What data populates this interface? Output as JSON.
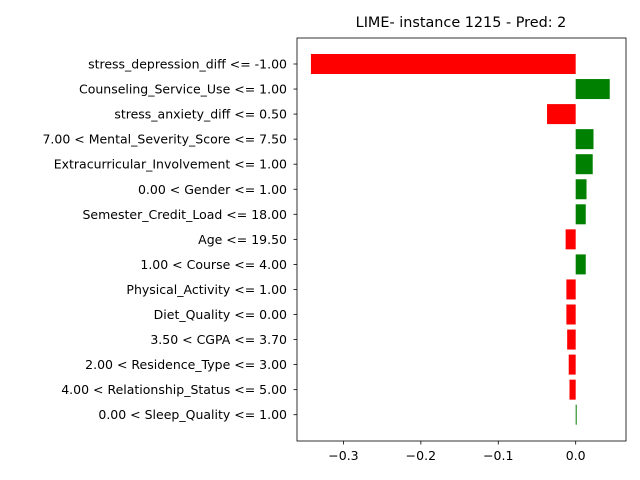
{
  "chart_data": {
    "type": "bar",
    "orientation": "horizontal",
    "title": "LIME- instance 1215 - Pred: 2",
    "xlabel": "",
    "ylabel": "",
    "xlim": [
      -0.36,
      0.065
    ],
    "xticks": [
      {
        "value": -0.3,
        "label": "−0.3"
      },
      {
        "value": -0.2,
        "label": "−0.2"
      },
      {
        "value": -0.1,
        "label": "−0.1"
      },
      {
        "value": 0.0,
        "label": "0.0"
      }
    ],
    "grid": false,
    "positive_color": "#008000",
    "negative_color": "#ff0000",
    "categories": [
      "stress_depression_diff <= -1.00",
      "Counseling_Service_Use <= 1.00",
      "stress_anxiety_diff <= 0.50",
      "7.00 < Mental_Severity_Score <= 7.50",
      "Extracurricular_Involvement <= 1.00",
      "0.00 < Gender <= 1.00",
      "Semester_Credit_Load <= 18.00",
      "Age <= 19.50",
      "1.00 < Course <= 4.00",
      "Physical_Activity <= 1.00",
      "Diet_Quality <= 0.00",
      "3.50 < CGPA <= 3.70",
      "2.00 < Residence_Type <= 3.00",
      "4.00 < Relationship_Status <= 5.00",
      "0.00 < Sleep_Quality <= 1.00"
    ],
    "values": [
      -0.342,
      0.044,
      -0.037,
      0.023,
      0.022,
      0.014,
      0.013,
      -0.013,
      0.013,
      -0.012,
      -0.012,
      -0.011,
      -0.009,
      -0.008,
      0.001
    ]
  }
}
